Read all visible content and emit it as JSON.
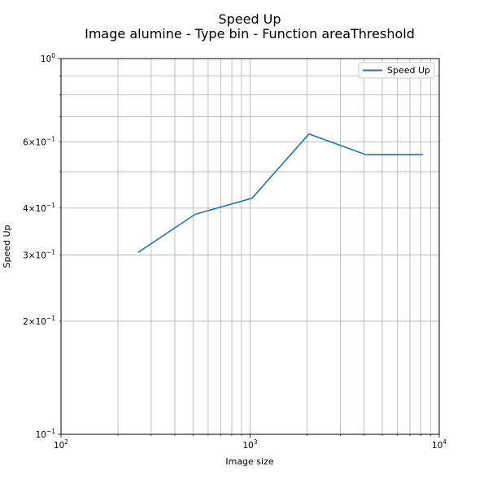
{
  "chart_data": {
    "type": "line",
    "title": "Speed Up",
    "subtitle": "Image alumine - Type bin - Function areaThreshold",
    "xlabel": "Image size",
    "ylabel": "Speed Up",
    "xscale": "log",
    "yscale": "log",
    "xlim": [
      100,
      10000
    ],
    "ylim": [
      0.1,
      1.0
    ],
    "grid": true,
    "legend_position": "top-right",
    "x_major_ticks": [
      {
        "value": 100,
        "base": "10",
        "exp": "2"
      },
      {
        "value": 1000,
        "base": "10",
        "exp": "3"
      },
      {
        "value": 10000,
        "base": "10",
        "exp": "4"
      }
    ],
    "y_major_ticks": [
      {
        "value": 0.1,
        "mant": "",
        "base": "10",
        "exp": "−1"
      },
      {
        "value": 1.0,
        "mant": "",
        "base": "10",
        "exp": "0"
      }
    ],
    "y_minor_labeled_ticks": [
      {
        "value": 0.2,
        "mant": "2",
        "base": "10",
        "exp": "−1"
      },
      {
        "value": 0.3,
        "mant": "3",
        "base": "10",
        "exp": "−1"
      },
      {
        "value": 0.4,
        "mant": "4",
        "base": "10",
        "exp": "−1"
      },
      {
        "value": 0.6,
        "mant": "6",
        "base": "10",
        "exp": "−1"
      }
    ],
    "series": [
      {
        "name": "Speed Up",
        "color": "#1f77b4",
        "x": [
          256,
          512,
          1024,
          2048,
          4096,
          8192
        ],
        "y": [
          0.305,
          0.385,
          0.425,
          0.63,
          0.555,
          0.555
        ]
      }
    ]
  }
}
